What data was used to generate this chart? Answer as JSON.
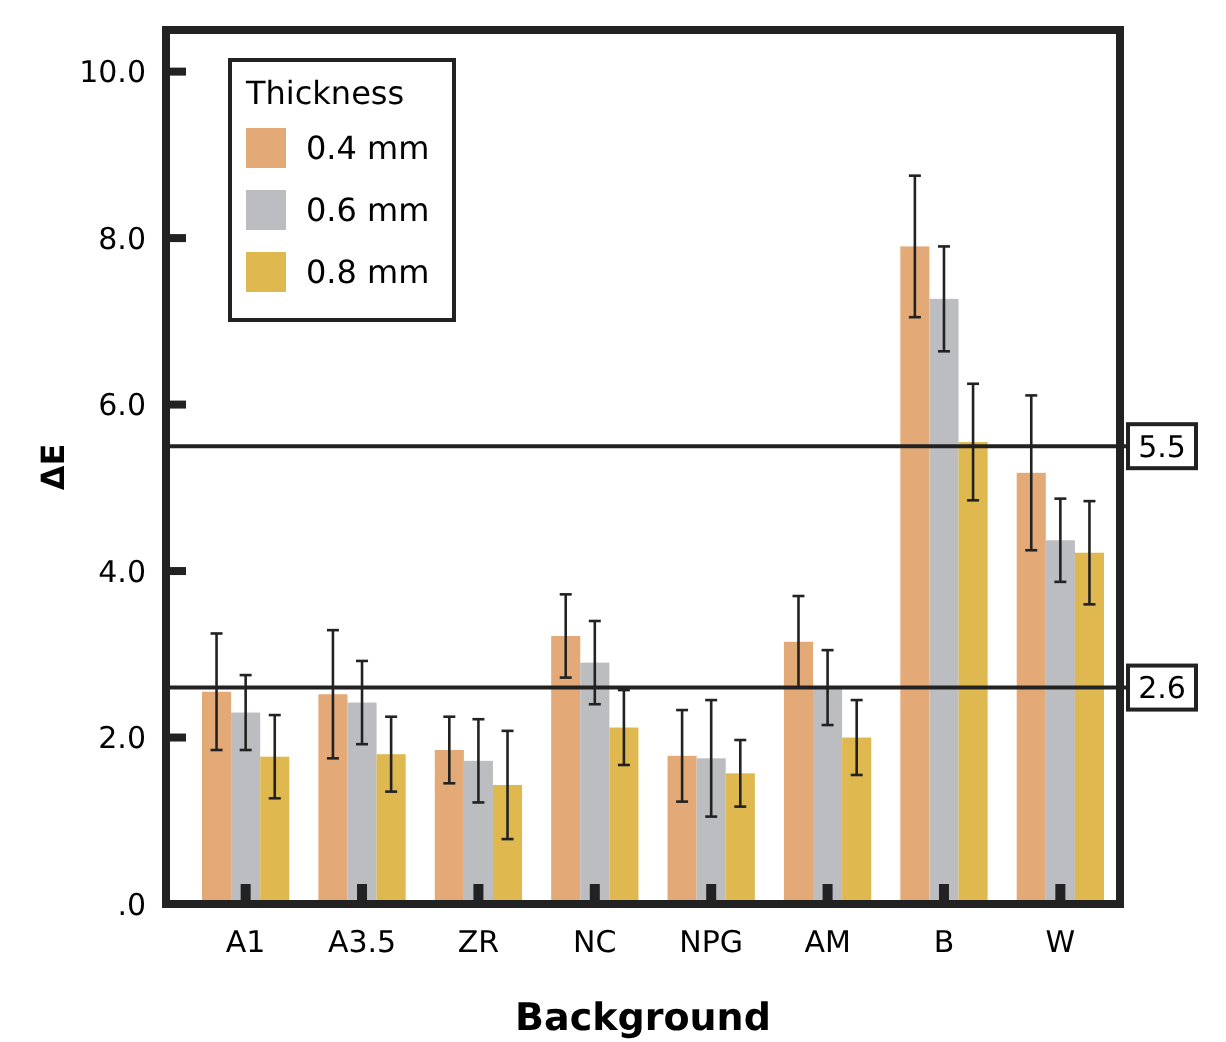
{
  "chart_data": {
    "type": "bar",
    "xlabel": "Background",
    "ylabel": "ΔE",
    "legend_title": "Thickness",
    "legend": "top left",
    "grid": false,
    "categories": [
      "A1",
      "A3.5",
      "ZR",
      "NC",
      "NPG",
      "AM",
      "B",
      "W"
    ],
    "series": [
      {
        "name": "0.4 mm",
        "color": "#e3aa78",
        "values": [
          2.55,
          2.52,
          1.85,
          3.22,
          1.78,
          3.15,
          7.9,
          5.18
        ],
        "errors": [
          0.7,
          0.77,
          0.4,
          0.5,
          0.55,
          0.55,
          0.85,
          0.93
        ]
      },
      {
        "name": "0.6 mm",
        "color": "#bcbdc0",
        "values": [
          2.3,
          2.42,
          1.72,
          2.9,
          1.75,
          2.6,
          7.27,
          4.37
        ],
        "errors": [
          0.45,
          0.5,
          0.5,
          0.5,
          0.7,
          0.45,
          0.63,
          0.5
        ]
      },
      {
        "name": "0.8 mm",
        "color": "#dfb84f",
        "values": [
          1.77,
          1.8,
          1.43,
          2.12,
          1.57,
          2.0,
          5.55,
          4.22
        ],
        "errors": [
          0.5,
          0.45,
          0.65,
          0.45,
          0.4,
          0.45,
          0.7,
          0.62
        ]
      }
    ],
    "ylim": [
      0,
      10.5
    ],
    "yticks": [
      {
        "value": 0,
        "label": ".0"
      },
      {
        "value": 2,
        "label": "2.0"
      },
      {
        "value": 4,
        "label": "4.0"
      },
      {
        "value": 6,
        "label": "6.0"
      },
      {
        "value": 8,
        "label": "8.0"
      },
      {
        "value": 10,
        "label": "10.0"
      }
    ],
    "ref_lines": [
      {
        "axis": "y",
        "value": 5.5,
        "label": "5.5"
      },
      {
        "axis": "y",
        "value": 2.6,
        "label": "2.6"
      }
    ]
  }
}
